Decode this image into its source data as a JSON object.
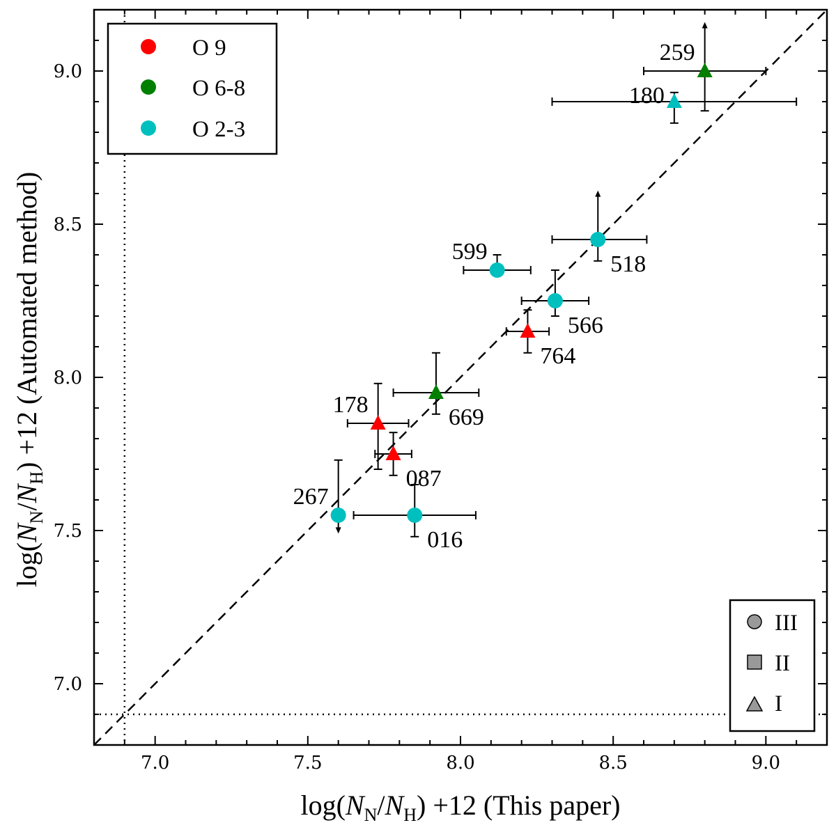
{
  "chart_data": {
    "type": "scatter",
    "xlabel": "log(N_N/N_H) +12 (This paper)",
    "ylabel": "log(N_N/N_H) +12 (Automated method)",
    "xlim": [
      6.8,
      9.2
    ],
    "ylim": [
      6.8,
      9.2
    ],
    "x_ticks": [
      "7.0",
      "7.5",
      "8.0",
      "8.5",
      "9.0"
    ],
    "y_ticks": [
      "7.0",
      "7.5",
      "8.0",
      "8.5",
      "9.0"
    ],
    "grid": false,
    "reference_lines": {
      "one_to_one": "dashed",
      "x_limit": 6.9,
      "y_limit": 6.9
    },
    "color_legend": {
      "placement": "top-left",
      "entries": [
        {
          "label": "O 9",
          "color": "#ff0000"
        },
        {
          "label": "O 6-8",
          "color": "#007f00"
        },
        {
          "label": "O 2-3",
          "color": "#00bfbf"
        }
      ]
    },
    "marker_legend": {
      "placement": "bottom-right",
      "entries": [
        {
          "label": "III",
          "marker": "circle"
        },
        {
          "label": "II",
          "marker": "square"
        },
        {
          "label": "I",
          "marker": "triangle"
        }
      ]
    },
    "points": [
      {
        "id": "259",
        "x": 8.8,
        "y": 9.0,
        "xerr": [
          0.2,
          0.2
        ],
        "yerr": [
          0.13,
          0
        ],
        "upper_arrow": true,
        "lower_arrow": false,
        "color": "#007f00",
        "marker": "triangle",
        "label_pos": "left-above"
      },
      {
        "id": "180",
        "x": 8.7,
        "y": 8.9,
        "xerr": [
          0.4,
          0.4
        ],
        "yerr": [
          0.07,
          0.03
        ],
        "upper_arrow": false,
        "lower_arrow": false,
        "color": "#00bfbf",
        "marker": "triangle",
        "label_pos": "left"
      },
      {
        "id": "518",
        "x": 8.45,
        "y": 8.45,
        "xerr": [
          0.15,
          0.16
        ],
        "yerr": [
          0.07,
          0
        ],
        "upper_arrow": true,
        "lower_arrow": false,
        "color": "#00bfbf",
        "marker": "circle",
        "label_pos": "right-below"
      },
      {
        "id": "599",
        "x": 8.12,
        "y": 8.35,
        "xerr": [
          0.11,
          0.11
        ],
        "yerr": [
          0,
          0.05
        ],
        "upper_arrow": false,
        "lower_arrow": false,
        "color": "#00bfbf",
        "marker": "circle",
        "label_pos": "left-above"
      },
      {
        "id": "566",
        "x": 8.31,
        "y": 8.25,
        "xerr": [
          0.11,
          0.11
        ],
        "yerr": [
          0.05,
          0.1
        ],
        "upper_arrow": false,
        "lower_arrow": false,
        "color": "#00bfbf",
        "marker": "circle",
        "label_pos": "right-below"
      },
      {
        "id": "764",
        "x": 8.22,
        "y": 8.15,
        "xerr": [
          0.07,
          0.07
        ],
        "yerr": [
          0.07,
          0.07
        ],
        "upper_arrow": false,
        "lower_arrow": false,
        "color": "#ff0000",
        "marker": "triangle",
        "label_pos": "right-below"
      },
      {
        "id": "669",
        "x": 7.92,
        "y": 7.95,
        "xerr": [
          0.14,
          0.14
        ],
        "yerr": [
          0.07,
          0.13
        ],
        "upper_arrow": false,
        "lower_arrow": false,
        "color": "#007f00",
        "marker": "triangle",
        "label_pos": "right-below"
      },
      {
        "id": "178",
        "x": 7.73,
        "y": 7.85,
        "xerr": [
          0.1,
          0.1
        ],
        "yerr": [
          0.15,
          0.13
        ],
        "upper_arrow": false,
        "lower_arrow": false,
        "color": "#ff0000",
        "marker": "triangle",
        "label_pos": "left-above"
      },
      {
        "id": "087",
        "x": 7.78,
        "y": 7.75,
        "xerr": [
          0.06,
          0.06
        ],
        "yerr": [
          0.07,
          0.07
        ],
        "upper_arrow": false,
        "lower_arrow": false,
        "color": "#ff0000",
        "marker": "triangle",
        "label_pos": "right-below"
      },
      {
        "id": "267",
        "x": 7.6,
        "y": 7.55,
        "xerr": [
          0,
          0
        ],
        "yerr": [
          0,
          0.18
        ],
        "upper_arrow": false,
        "lower_arrow": true,
        "color": "#00bfbf",
        "marker": "circle",
        "label_pos": "left-above"
      },
      {
        "id": "016",
        "x": 7.85,
        "y": 7.55,
        "xerr": [
          0.2,
          0.2
        ],
        "yerr": [
          0.07,
          0.1
        ],
        "upper_arrow": false,
        "lower_arrow": false,
        "color": "#00bfbf",
        "marker": "circle",
        "label_pos": "right-below"
      }
    ]
  }
}
